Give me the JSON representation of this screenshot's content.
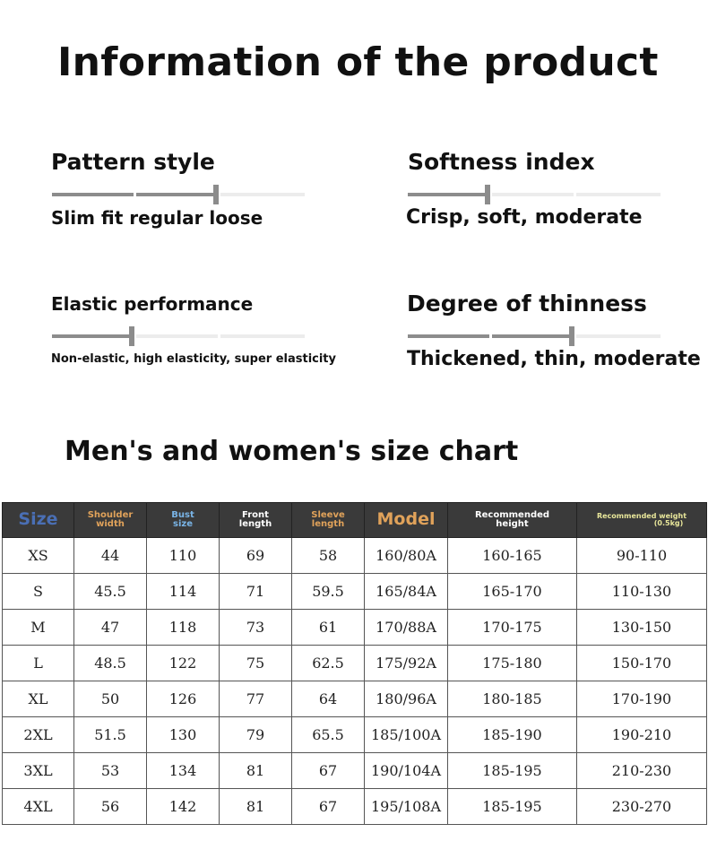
{
  "title": "Information of the product",
  "attributes": [
    {
      "label": "Pattern style",
      "options": "Slim fit regular loose",
      "level": 2
    },
    {
      "label": "Softness index",
      "options": "Crisp, soft, moderate",
      "level": 1
    },
    {
      "label": "Elastic performance",
      "options": "Non-elastic, high elasticity, super elasticity",
      "level": 1
    },
    {
      "label": "Degree of thinness",
      "options": "Thickened, thin, moderate",
      "level": 2
    }
  ],
  "size_chart": {
    "title": "Men's and women's size chart",
    "header_colors": [
      "#4a6fb5",
      "#e0a25a",
      "#79b4e6",
      "#ffffff",
      "#e0a25a",
      "#e0a25a",
      "#ffffff",
      "#e8e69a"
    ],
    "headers": [
      {
        "l1": "Size",
        "l2": ""
      },
      {
        "l1": "Shoulder",
        "l2": "width"
      },
      {
        "l1": "Bust",
        "l2": "size"
      },
      {
        "l1": "Front",
        "l2": "length"
      },
      {
        "l1": "Sleeve",
        "l2": "length"
      },
      {
        "l1": "Model",
        "l2": ""
      },
      {
        "l1": "Recommended",
        "l2": "height"
      },
      {
        "l1": "Recommended weight",
        "l2": "(0.5kg)"
      }
    ],
    "rows": [
      [
        "XS",
        "44",
        "110",
        "69",
        "58",
        "160/80A",
        "160-165",
        "90-110"
      ],
      [
        "S",
        "45.5",
        "114",
        "71",
        "59.5",
        "165/84A",
        "165-170",
        "110-130"
      ],
      [
        "M",
        "47",
        "118",
        "73",
        "61",
        "170/88A",
        "170-175",
        "130-150"
      ],
      [
        "L",
        "48.5",
        "122",
        "75",
        "62.5",
        "175/92A",
        "175-180",
        "150-170"
      ],
      [
        "XL",
        "50",
        "126",
        "77",
        "64",
        "180/96A",
        "180-185",
        "170-190"
      ],
      [
        "2XL",
        "51.5",
        "130",
        "79",
        "65.5",
        "185/100A",
        "185-190",
        "190-210"
      ],
      [
        "3XL",
        "53",
        "134",
        "81",
        "67",
        "190/104A",
        "185-195",
        "210-230"
      ],
      [
        "4XL",
        "56",
        "142",
        "81",
        "67",
        "195/108A",
        "185-195",
        "230-270"
      ]
    ]
  }
}
